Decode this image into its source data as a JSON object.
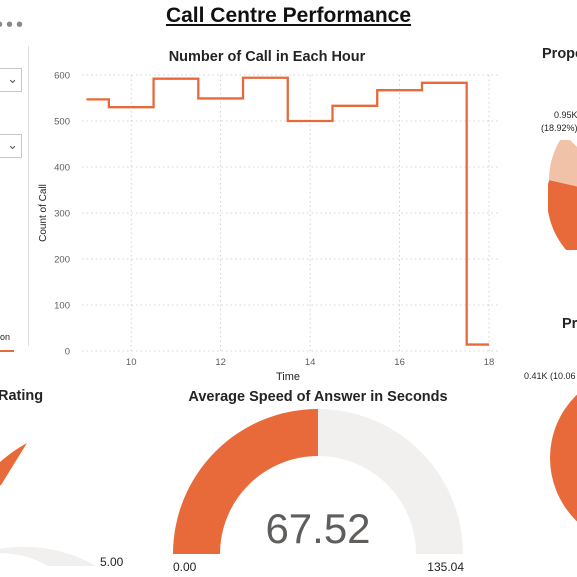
{
  "page": {
    "title": "Call Centre Performance"
  },
  "filters": {
    "legend_fragment": "on"
  },
  "colors": {
    "accent": "#e8693a",
    "light_accent": "#f2c2a8",
    "track": "#f1f0ef",
    "grid": "#c8c6c4"
  },
  "cards": {
    "right_top_title": "Propo",
    "right_top_label_value": "0.95K",
    "right_top_label_pct": "(18.92%)",
    "right_mid_title": "Pr",
    "right_mid_label": "0.41K (10.06",
    "left_gauge_title": "Rating",
    "left_gauge_max": "5.00"
  },
  "chart_data": [
    {
      "type": "line",
      "title": "Number of Call in Each Hour",
      "xlabel": "Time",
      "ylabel": "Count of Call",
      "x_ticks": [
        10,
        12,
        14,
        16,
        18
      ],
      "y_ticks": [
        0,
        100,
        200,
        300,
        400,
        500,
        600
      ],
      "xlim": [
        8.9,
        18.2
      ],
      "ylim": [
        0,
        600
      ],
      "step": "middle",
      "grid": true,
      "x": [
        9,
        10,
        11,
        12,
        13,
        14,
        15,
        16,
        17,
        18
      ],
      "values": [
        547,
        530,
        592,
        549,
        594,
        500,
        533,
        567,
        583,
        14
      ]
    },
    {
      "type": "gauge",
      "title": "Average Speed of Answer in Seconds",
      "value": 67.52,
      "value_label": "67.52",
      "min": 0,
      "max": 135.04,
      "min_label": "0.00",
      "max_label": "135.04"
    }
  ]
}
